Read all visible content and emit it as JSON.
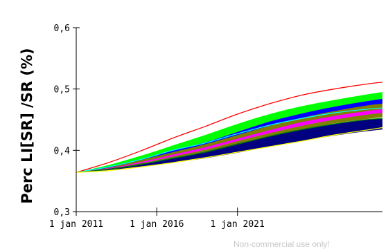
{
  "chart_data": {
    "type": "area",
    "title": "",
    "ylabel": "Perc LI[SR] /SR (%)",
    "xlabel": "",
    "x_range": [
      "2011-01-01",
      "2029-12-31"
    ],
    "ylim": [
      0.3,
      0.6
    ],
    "y_ticks": [
      0.3,
      0.4,
      0.5,
      0.6
    ],
    "y_tick_labels": [
      "0,3",
      "0,4",
      "0,5",
      "0,6"
    ],
    "x_ticks": [
      "2011-01-01",
      "2016-01-01",
      "2021-01-01"
    ],
    "x_tick_labels": [
      "1 jan 2011",
      "1 jan 2016",
      "1 jan 2021"
    ],
    "grid": false,
    "x": [
      "2011-01-01",
      "2013-01-01",
      "2015-01-01",
      "2017-01-01",
      "2019-01-01",
      "2021-01-01",
      "2023-01-01",
      "2025-01-01",
      "2027-01-01",
      "2029-01-01",
      "2029-12-31"
    ],
    "bands": [
      {
        "color": "#00ff00",
        "lower": [
          0.364,
          0.372,
          0.383,
          0.397,
          0.41,
          0.427,
          0.443,
          0.457,
          0.468,
          0.478,
          0.481
        ],
        "upper": [
          0.364,
          0.376,
          0.391,
          0.408,
          0.425,
          0.443,
          0.459,
          0.472,
          0.482,
          0.491,
          0.495
        ]
      },
      {
        "color": "#0000ff",
        "lower": [
          0.364,
          0.371,
          0.382,
          0.395,
          0.407,
          0.423,
          0.437,
          0.45,
          0.461,
          0.469,
          0.472
        ],
        "upper": [
          0.364,
          0.373,
          0.385,
          0.4,
          0.413,
          0.43,
          0.447,
          0.46,
          0.471,
          0.48,
          0.484
        ]
      },
      {
        "color": "#808000",
        "lower": [
          0.364,
          0.369,
          0.378,
          0.388,
          0.398,
          0.41,
          0.423,
          0.434,
          0.444,
          0.451,
          0.454
        ],
        "upper": [
          0.364,
          0.372,
          0.384,
          0.397,
          0.41,
          0.425,
          0.44,
          0.453,
          0.464,
          0.473,
          0.476
        ]
      },
      {
        "color": "#ff00ff",
        "lower": [
          0.364,
          0.37,
          0.379,
          0.39,
          0.401,
          0.415,
          0.428,
          0.44,
          0.45,
          0.458,
          0.461
        ],
        "upper": [
          0.364,
          0.371,
          0.381,
          0.393,
          0.405,
          0.419,
          0.433,
          0.446,
          0.456,
          0.464,
          0.467
        ]
      },
      {
        "color": "#000080",
        "lower": [
          0.364,
          0.367,
          0.373,
          0.38,
          0.387,
          0.396,
          0.406,
          0.415,
          0.424,
          0.431,
          0.434
        ],
        "upper": [
          0.364,
          0.37,
          0.378,
          0.388,
          0.398,
          0.411,
          0.423,
          0.434,
          0.443,
          0.45,
          0.452
        ]
      }
    ],
    "series": [
      {
        "color": "#ff0000",
        "values": [
          0.364,
          0.38,
          0.399,
          0.42,
          0.439,
          0.459,
          0.476,
          0.49,
          0.5,
          0.508,
          0.511
        ]
      },
      {
        "color": "#00ffff",
        "values": [
          0.364,
          0.373,
          0.385,
          0.4,
          0.412,
          0.427,
          0.441,
          0.452,
          0.461,
          0.467,
          0.469
        ]
      },
      {
        "color": "#008000",
        "values": [
          0.364,
          0.369,
          0.377,
          0.387,
          0.397,
          0.41,
          0.423,
          0.434,
          0.443,
          0.45,
          0.452
        ]
      },
      {
        "color": "#ffff00",
        "values": [
          0.364,
          0.367,
          0.373,
          0.38,
          0.388,
          0.397,
          0.406,
          0.415,
          0.425,
          0.433,
          0.437
        ]
      }
    ]
  },
  "watermark": "Non-commercial use only!"
}
